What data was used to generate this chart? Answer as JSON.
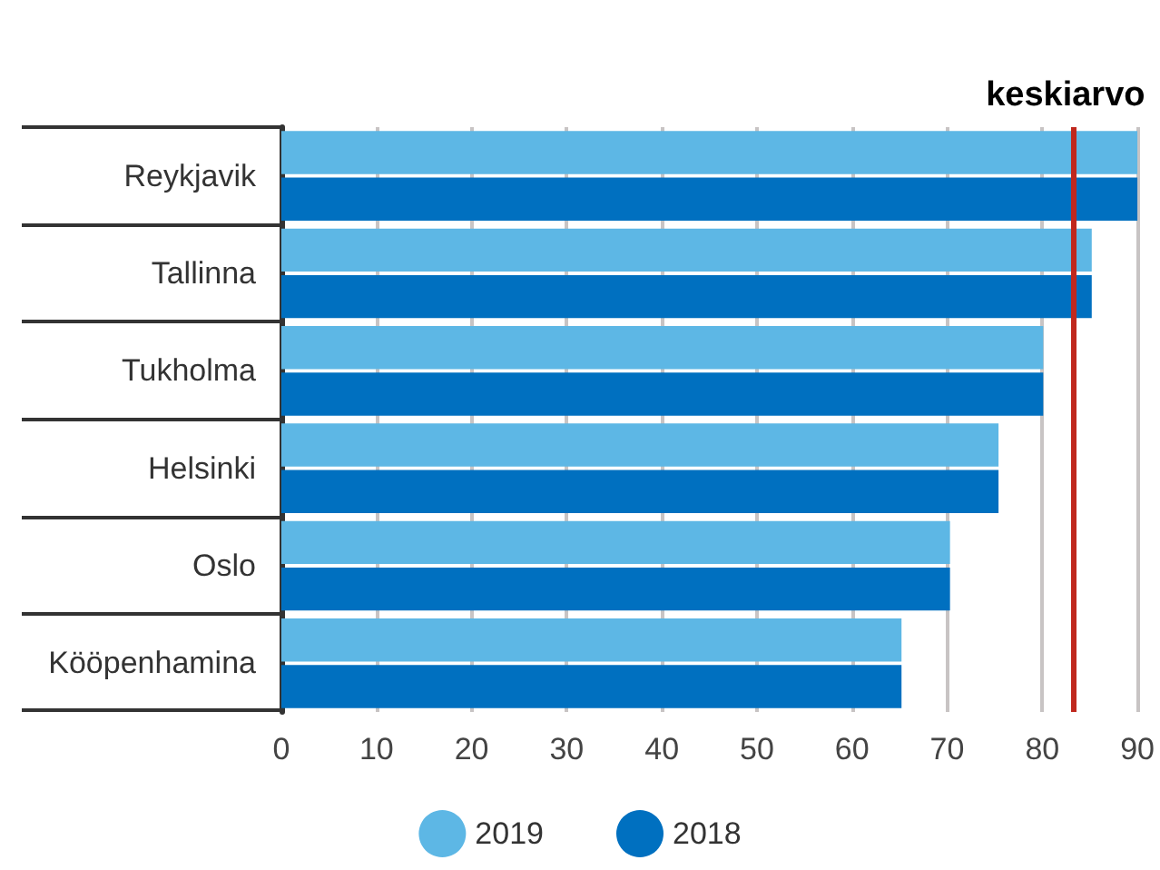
{
  "chart_data": {
    "type": "bar",
    "orientation": "horizontal",
    "categories": [
      "Reykjavik",
      "Tallinna",
      "Tukholma",
      "Helsinki",
      "Oslo",
      "Kööpenhamina"
    ],
    "series": [
      {
        "name": "2019",
        "color": "#5db7e5",
        "values": [
          90,
          85.2,
          80.1,
          75.4,
          70.3,
          65.2
        ]
      },
      {
        "name": "2018",
        "color": "#0070c0",
        "values": [
          90,
          85.2,
          80.1,
          75.4,
          70.3,
          65.2
        ]
      }
    ],
    "xlim": [
      0,
      90
    ],
    "xticks": [
      0,
      10,
      20,
      30,
      40,
      50,
      60,
      70,
      80,
      90
    ],
    "ref_lines": [
      {
        "axis": "x",
        "value": 83.2,
        "label": "keskiarvo",
        "color": "#c0281e"
      }
    ],
    "grid": "x",
    "legend": "bottom"
  }
}
